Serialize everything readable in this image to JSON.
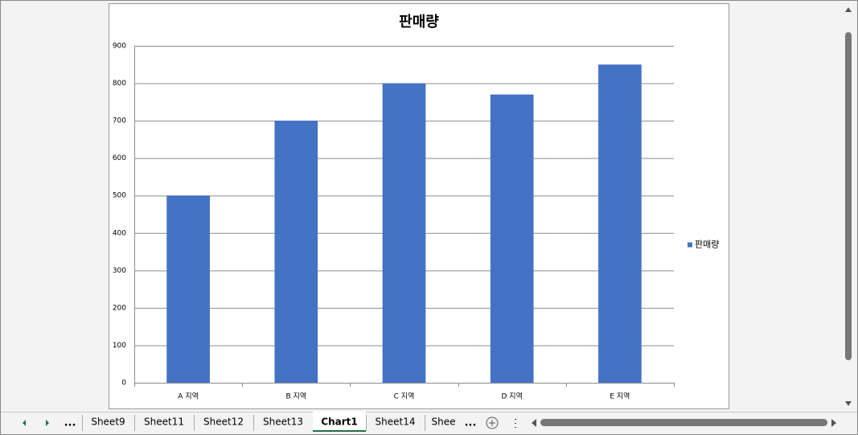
{
  "chart_data": {
    "type": "bar",
    "title": "판매량",
    "categories": [
      "A 지역",
      "B 지역",
      "C 지역",
      "D 지역",
      "E 지역"
    ],
    "series": [
      {
        "name": "판매량",
        "color": "#4472c4",
        "values": [
          500,
          700,
          800,
          770,
          850
        ]
      }
    ],
    "ylim": [
      0,
      900
    ],
    "yticks": [
      0,
      100,
      200,
      300,
      400,
      500,
      600,
      700,
      800,
      900
    ],
    "grid": true,
    "legend": "right"
  },
  "sheet_tabs": {
    "overflow": "...",
    "tabs": [
      "Sheet9",
      "Sheet11",
      "Sheet12",
      "Sheet13",
      "Chart1",
      "Sheet14",
      "Shee"
    ],
    "active": 4
  }
}
